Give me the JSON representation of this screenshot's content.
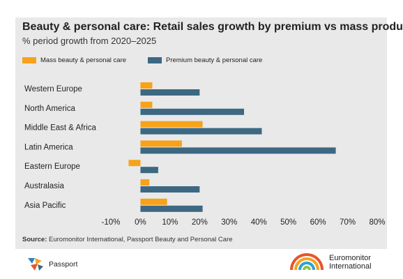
{
  "header": {
    "title": "Beauty & personal care: Retail sales growth by premium vs mass products",
    "subtitle": "% period growth from 2020–2025"
  },
  "chart_data": {
    "type": "bar",
    "orientation": "horizontal",
    "title": "Beauty & personal care: Retail sales growth by premium vs mass products",
    "subtitle": "% period growth from 2020–2025",
    "categories": [
      "Western Europe",
      "North America",
      "Middle East & Africa",
      "Latin America",
      "Eastern Europe",
      "Australasia",
      "Asia Pacific"
    ],
    "series": [
      {
        "name": "Mass beauty & personal care",
        "color": "#f7a21b",
        "values": [
          4,
          4,
          21,
          14,
          -4,
          3,
          9
        ]
      },
      {
        "name": "Premium beauty & personal care",
        "color": "#3d6882",
        "values": [
          20,
          35,
          41,
          66,
          6,
          20,
          21
        ]
      }
    ],
    "xlim": [
      -10,
      80
    ],
    "xticks": [
      -10,
      0,
      10,
      20,
      30,
      40,
      50,
      60,
      70,
      80
    ],
    "xtick_labels": [
      "-10%",
      "0%",
      "10%",
      "20%",
      "30%",
      "40%",
      "50%",
      "60%",
      "70%",
      "80%"
    ],
    "legend_position": "top-left",
    "grid": false
  },
  "footer": {
    "source_label": "Source:",
    "source_text": "Euromonitor International, Passport Beauty and Personal Care"
  },
  "logos": {
    "passport": "Passport",
    "euromonitor_line1": "Euromonitor",
    "euromonitor_line2": "International"
  },
  "colors": {
    "background": "#e9e9e9",
    "mass": "#f7a21b",
    "premium": "#3d6882"
  }
}
